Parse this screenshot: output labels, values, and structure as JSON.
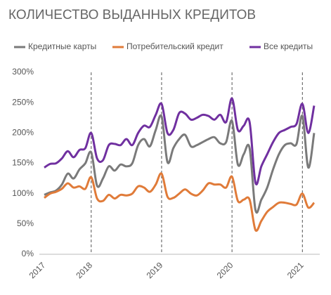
{
  "chart_data": {
    "type": "line",
    "title": "КОЛИЧЕСТВО ВЫДАННЫХ КРЕДИТОВ",
    "categories": [
      "2017",
      null,
      null,
      null,
      null,
      null,
      null,
      null,
      "2018",
      null,
      null,
      null,
      null,
      null,
      null,
      null,
      null,
      null,
      null,
      null,
      "2019",
      null,
      null,
      null,
      null,
      null,
      null,
      null,
      null,
      null,
      null,
      null,
      "2020",
      null,
      null,
      null,
      null,
      null,
      null,
      null,
      null,
      null,
      null,
      null,
      "2021",
      null,
      null
    ],
    "series": [
      {
        "name": "Кредитные карты",
        "color": "#7a7a7a",
        "values": [
          98,
          102,
          105,
          115,
          133,
          125,
          140,
          150,
          168,
          113,
          125,
          145,
          138,
          148,
          145,
          150,
          180,
          190,
          178,
          205,
          227,
          152,
          175,
          190,
          197,
          178,
          180,
          185,
          190,
          193,
          183,
          185,
          220,
          148,
          165,
          175,
          73,
          90,
          110,
          140,
          165,
          180,
          183,
          182,
          228,
          143,
          200
        ]
      },
      {
        "name": "Потребительский кредит",
        "color": "#e07b39",
        "values": [
          93,
          100,
          103,
          108,
          117,
          110,
          112,
          108,
          127,
          92,
          88,
          98,
          92,
          98,
          97,
          100,
          112,
          110,
          103,
          115,
          133,
          95,
          93,
          100,
          107,
          100,
          97,
          105,
          117,
          115,
          115,
          110,
          128,
          88,
          90,
          90,
          40,
          55,
          70,
          78,
          85,
          85,
          83,
          82,
          100,
          77,
          85
        ]
      },
      {
        "name": "Все кредиты",
        "color": "#7030a0",
        "values": [
          143,
          149,
          150,
          158,
          170,
          160,
          172,
          175,
          200,
          158,
          155,
          180,
          182,
          180,
          190,
          180,
          200,
          212,
          210,
          230,
          248,
          200,
          205,
          233,
          232,
          222,
          225,
          230,
          228,
          222,
          230,
          218,
          257,
          205,
          212,
          218,
          118,
          145,
          165,
          185,
          200,
          205,
          210,
          215,
          248,
          200,
          245
        ]
      }
    ],
    "ylim": [
      0,
      300
    ],
    "yticks": [
      {
        "value": 0,
        "label": "0%"
      },
      {
        "value": 50,
        "label": "50%"
      },
      {
        "value": 100,
        "label": "100%"
      },
      {
        "value": 150,
        "label": "150%"
      },
      {
        "value": 200,
        "label": "200%"
      },
      {
        "value": 250,
        "label": "250%"
      },
      {
        "value": 300,
        "label": "300%"
      }
    ]
  }
}
